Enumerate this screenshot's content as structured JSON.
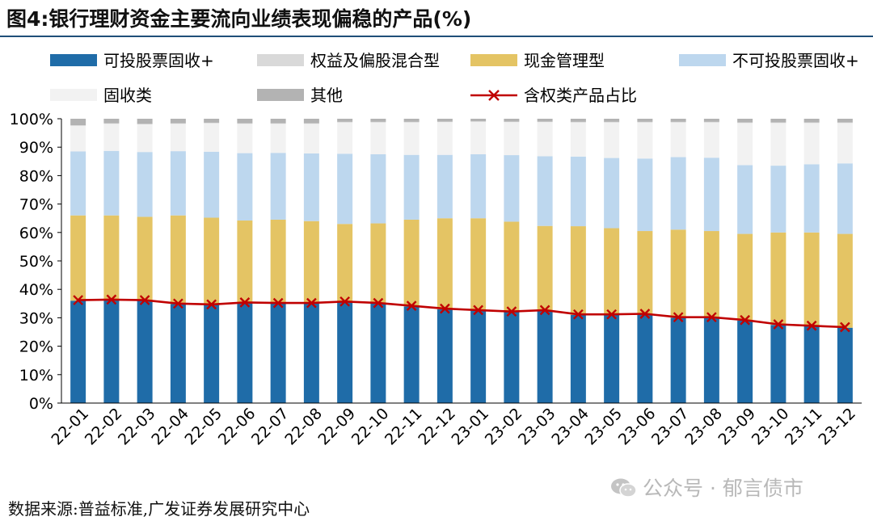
{
  "header": {
    "title": "图4:银行理财资金主要流向业绩表现偏稳的产品(%)"
  },
  "footer": {
    "source": "数据来源:普益标准,广发证券发展研究中心",
    "watermark": "公众号 · 郁言债市"
  },
  "chart_data": {
    "type": "bar",
    "stacked": true,
    "categories": [
      "22-01",
      "22-02",
      "22-03",
      "22-04",
      "22-05",
      "22-06",
      "22-07",
      "22-08",
      "22-09",
      "22-10",
      "22-11",
      "22-12",
      "23-01",
      "23-02",
      "23-03",
      "23-04",
      "23-05",
      "23-06",
      "23-07",
      "23-08",
      "23-09",
      "23-10",
      "23-11",
      "23-12"
    ],
    "ylim": [
      0,
      100
    ],
    "ytick_labels": [
      "0%",
      "10%",
      "20%",
      "30%",
      "40%",
      "50%",
      "60%",
      "70%",
      "80%",
      "90%",
      "100%"
    ],
    "legend_placement": "top",
    "series": [
      {
        "name": "可投股票固收+",
        "color": "#1f6ca8",
        "values": [
          36.0,
          36.2,
          36.0,
          34.8,
          34.5,
          35.2,
          35.0,
          35.0,
          35.5,
          35.0,
          34.0,
          33.0,
          32.5,
          32.0,
          32.5,
          31.0,
          31.0,
          31.2,
          30.0,
          30.0,
          29.0,
          27.5,
          27.0,
          26.5
        ]
      },
      {
        "name": "现金管理型",
        "color": "#e4c464",
        "values": [
          30.0,
          29.8,
          29.5,
          31.2,
          30.7,
          29.0,
          29.5,
          29.0,
          27.5,
          28.2,
          30.5,
          32.0,
          32.5,
          31.8,
          29.8,
          31.2,
          30.5,
          29.3,
          31.0,
          30.5,
          30.5,
          32.5,
          33.0,
          33.0
        ]
      },
      {
        "name": "不可投股票固收+",
        "color": "#bdd7ee",
        "values": [
          22.5,
          22.7,
          22.8,
          22.6,
          23.2,
          23.7,
          23.5,
          23.8,
          24.7,
          24.3,
          22.8,
          22.3,
          22.5,
          23.4,
          24.5,
          24.5,
          24.7,
          25.5,
          25.5,
          25.8,
          24.2,
          23.5,
          24.0,
          24.8
        ]
      },
      {
        "name": "固收类",
        "color": "#f2f2f2",
        "values": [
          9.0,
          9.5,
          9.7,
          9.6,
          10.0,
          10.3,
          10.2,
          10.4,
          11.0,
          11.2,
          11.4,
          11.5,
          11.4,
          11.6,
          12.0,
          12.0,
          12.5,
          12.7,
          12.2,
          12.4,
          14.8,
          15.0,
          14.5,
          14.2
        ]
      },
      {
        "name": "权益及偏股混合型",
        "color": "#d9d9d9",
        "values": [
          0.2,
          0.2,
          0.2,
          0.2,
          0.2,
          0.2,
          0.2,
          0.2,
          0.2,
          0.2,
          0.2,
          0.2,
          0.2,
          0.2,
          0.2,
          0.2,
          0.2,
          0.2,
          0.2,
          0.2,
          0.2,
          0.2,
          0.2,
          0.2
        ]
      },
      {
        "name": "其他",
        "color": "#b3b3b3",
        "values": [
          2.3,
          1.6,
          1.8,
          1.6,
          1.4,
          1.6,
          1.6,
          1.6,
          1.1,
          1.1,
          1.1,
          1.0,
          0.9,
          1.0,
          1.0,
          1.1,
          1.1,
          1.1,
          1.1,
          1.1,
          1.3,
          1.3,
          1.3,
          1.3
        ]
      }
    ],
    "line": {
      "name": "含权类产品占比",
      "color": "#c00000",
      "values": [
        36.2,
        36.4,
        36.2,
        35.0,
        34.7,
        35.4,
        35.2,
        35.2,
        35.7,
        35.2,
        34.2,
        33.2,
        32.7,
        32.2,
        32.7,
        31.2,
        31.2,
        31.4,
        30.2,
        30.2,
        29.2,
        27.7,
        27.2,
        26.7
      ]
    },
    "legend_order": [
      "可投股票固收+",
      "权益及偏股混合型",
      "现金管理型",
      "不可投股票固收+",
      "固收类",
      "其他",
      "含权类产品占比"
    ]
  }
}
